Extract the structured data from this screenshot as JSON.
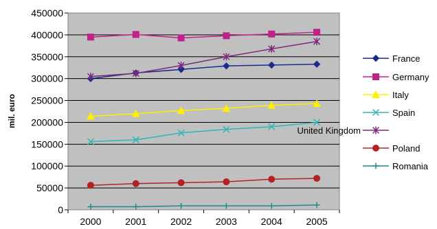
{
  "chart_data": {
    "type": "line",
    "ylabel": "mil. euro",
    "xlabel": "",
    "categories": [
      "2000",
      "2001",
      "2002",
      "2003",
      "2004",
      "2005"
    ],
    "ylim": [
      0,
      450000
    ],
    "yticks": [
      "0",
      "50000",
      "100000",
      "150000",
      "200000",
      "250000",
      "300000",
      "350000",
      "400000",
      "450000"
    ],
    "grid": true,
    "legend_position": "right",
    "plot_background": "#c0c0c0",
    "series": [
      {
        "name": "France",
        "values": [
          300000,
          313000,
          321000,
          329000,
          331000,
          333000
        ],
        "color": "#1a2a8c",
        "marker": "diamond"
      },
      {
        "name": "Germany",
        "values": [
          395000,
          401000,
          393000,
          398000,
          402000,
          406000
        ],
        "color": "#c2218c",
        "marker": "square"
      },
      {
        "name": "Italy",
        "values": [
          214000,
          220000,
          227000,
          232000,
          239000,
          243000
        ],
        "color": "#ffee00",
        "marker": "triangle"
      },
      {
        "name": "Spain",
        "values": [
          156000,
          160000,
          176000,
          184000,
          190000,
          200000
        ],
        "color": "#2fb5b5",
        "marker": "x"
      },
      {
        "name": "United Kingdom",
        "values": [
          305000,
          312000,
          330000,
          350000,
          368000,
          385000
        ],
        "color": "#7b2a7b",
        "marker": "star"
      },
      {
        "name": "Poland",
        "values": [
          56000,
          60000,
          62000,
          64000,
          70000,
          72000
        ],
        "color": "#b22222",
        "marker": "circle"
      },
      {
        "name": "Romania",
        "values": [
          7000,
          7000,
          9000,
          9000,
          9000,
          11000
        ],
        "color": "#1a8c8c",
        "marker": "plus"
      }
    ]
  }
}
